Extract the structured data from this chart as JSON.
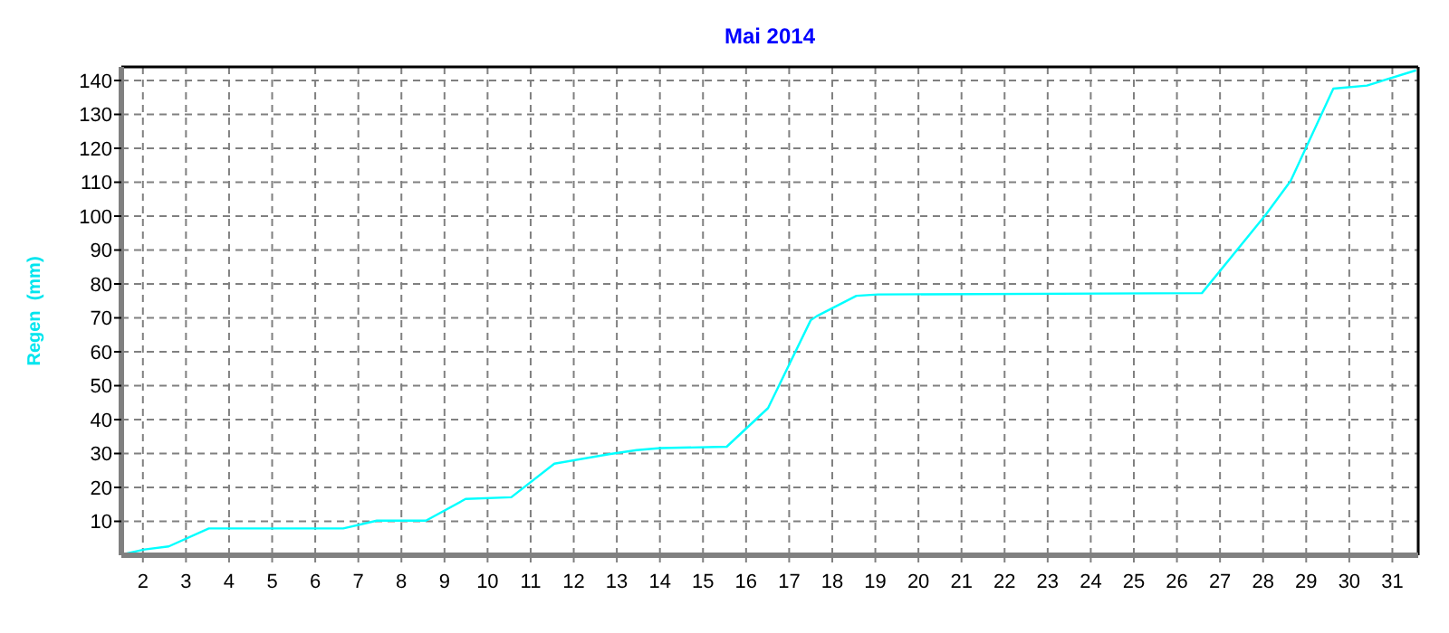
{
  "chart_data": {
    "type": "line",
    "title": "Mai 2014",
    "ylabel": "Regen  (mm)",
    "x": [
      1.54,
      2.04,
      2.6,
      3.53,
      6.65,
      7.43,
      8.57,
      9.49,
      10.55,
      11.55,
      12.82,
      13.46,
      14.02,
      15.55,
      16.51,
      17.5,
      17.64,
      18.56,
      19.06,
      26.58,
      28.06,
      28.64,
      29.63,
      30.41,
      31.55
    ],
    "series": [
      {
        "color": "#00ffff",
        "values": [
          0.3,
          1.7,
          2.6,
          7.9,
          7.9,
          10.2,
          10.2,
          16.6,
          17.1,
          27,
          29.8,
          31,
          31.6,
          32,
          43.4,
          69.3,
          70.5,
          76.5,
          76.9,
          77.3,
          100.4,
          110.4,
          137.6,
          138.5,
          143
        ]
      }
    ],
    "xlim": [
      1.5,
      31.6
    ],
    "xticks": [
      2,
      3,
      4,
      5,
      6,
      7,
      8,
      9,
      10,
      11,
      12,
      13,
      14,
      15,
      16,
      17,
      18,
      19,
      20,
      21,
      22,
      23,
      24,
      25,
      26,
      27,
      28,
      29,
      30,
      31
    ],
    "ylim": [
      0,
      144
    ],
    "yticks": [
      10,
      20,
      30,
      40,
      50,
      60,
      70,
      80,
      90,
      100,
      110,
      120,
      130,
      140
    ],
    "grid": true,
    "marker": "none",
    "line_style": "solid"
  }
}
